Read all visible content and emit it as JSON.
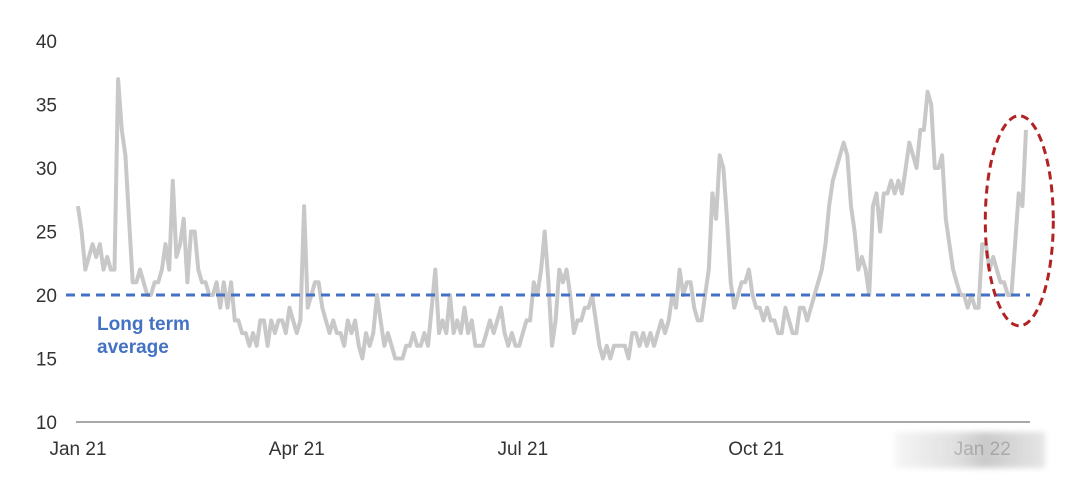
{
  "chart_data": {
    "type": "line",
    "title": "",
    "xlabel": "",
    "ylabel": "",
    "ylim": [
      10,
      40
    ],
    "yticks": [
      10,
      15,
      20,
      25,
      30,
      35,
      40
    ],
    "xticks": [
      {
        "label": "Jan 21",
        "t": 0
      },
      {
        "label": "Apr 21",
        "t": 60
      },
      {
        "label": "Jul 21",
        "t": 122
      },
      {
        "label": "Oct 21",
        "t": 186
      },
      {
        "label": "Jan 22",
        "t": 248
      }
    ],
    "grid": false,
    "series": [
      {
        "name": "",
        "color": "#c8c8c8",
        "values": [
          27,
          25,
          22,
          23,
          24,
          23,
          24,
          22,
          23,
          22,
          22,
          37,
          33,
          31,
          26,
          21,
          21,
          22,
          21,
          20,
          20,
          21,
          21,
          22,
          24,
          22,
          29,
          23,
          24,
          26,
          21,
          25,
          25,
          22,
          21,
          21,
          20,
          20,
          21,
          19,
          21,
          19,
          21,
          18,
          18,
          17,
          17,
          16,
          17,
          16,
          18,
          18,
          16,
          18,
          17,
          18,
          18,
          17,
          19,
          18,
          17,
          18,
          27,
          19,
          20,
          21,
          21,
          19,
          18,
          17,
          18,
          17,
          17,
          16,
          18,
          17,
          18,
          16,
          15,
          17,
          16,
          17,
          20,
          18,
          16,
          17,
          16,
          15,
          15,
          15,
          16,
          16,
          17,
          16,
          16,
          17,
          16,
          19,
          22,
          17,
          18,
          17,
          20,
          17,
          18,
          17,
          19,
          17,
          18,
          16,
          16,
          16,
          17,
          18,
          17,
          18,
          19,
          17,
          16,
          17,
          16,
          16,
          17,
          18,
          18,
          21,
          20,
          22,
          25,
          21,
          16,
          18,
          22,
          21,
          22,
          20,
          17,
          18,
          18,
          19,
          19,
          20,
          18,
          16,
          15,
          16,
          15,
          16,
          16,
          16,
          16,
          15,
          17,
          17,
          16,
          17,
          16,
          17,
          16,
          17,
          18,
          17,
          18,
          20,
          19,
          22,
          20,
          21,
          21,
          19,
          18,
          18,
          20,
          22,
          28,
          26,
          31,
          30,
          26,
          21,
          19,
          20,
          21,
          21,
          22,
          20,
          19,
          19,
          18,
          19,
          18,
          18,
          17,
          17,
          19,
          18,
          17,
          17,
          19,
          19,
          18,
          19,
          20,
          21,
          22,
          24,
          27,
          29,
          30,
          31,
          32,
          31,
          27,
          25,
          22,
          23,
          22,
          20,
          27,
          28,
          25,
          28,
          28,
          29,
          28,
          29,
          28,
          30,
          32,
          31,
          30,
          33,
          33,
          36,
          35,
          30,
          30,
          31,
          26,
          24,
          22,
          21,
          20,
          20,
          19,
          20,
          19,
          19,
          24,
          24,
          22,
          23,
          22,
          21,
          21,
          20,
          20,
          24,
          28,
          27,
          33
        ],
        "highlight_range": [
          247,
          262
        ]
      }
    ],
    "annotations": [
      {
        "type": "hline",
        "y": 20,
        "label": "Long term average",
        "color": "#4472c4",
        "style": "dashed"
      },
      {
        "type": "ellipse",
        "t_center": 262,
        "y_center": 26,
        "color": "#b22222",
        "style": "dashed"
      }
    ],
    "ann_label_lines": [
      "Long term",
      "average"
    ]
  }
}
